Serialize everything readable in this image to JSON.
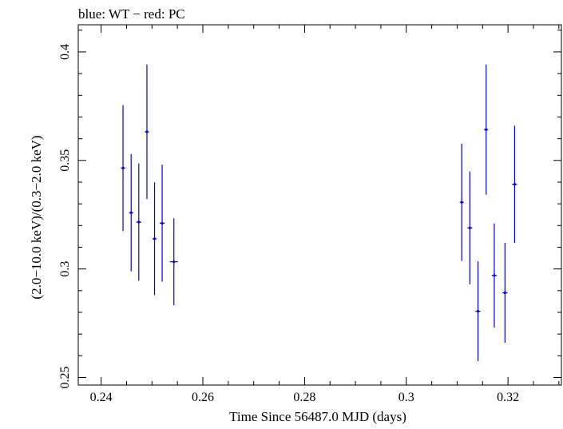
{
  "chart_data": {
    "type": "scatter",
    "title": "blue: WT − red: PC",
    "xlabel": "Time Since 56487.0 MJD (days)",
    "ylabel": "(2.0−10.0 keV)/(0.3−2.0 keV)",
    "xlim": [
      0.2355,
      0.3305
    ],
    "ylim": [
      0.2465,
      0.4125
    ],
    "x_ticks": [
      0.24,
      0.26,
      0.28,
      0.3,
      0.32
    ],
    "x_tick_labels": [
      "0.24",
      "0.26",
      "0.28",
      "0.3",
      "0.32"
    ],
    "y_ticks": [
      0.25,
      0.3,
      0.35,
      0.4
    ],
    "y_tick_labels": [
      "0.25",
      "0.3",
      "0.35",
      "0.4"
    ],
    "grid": false,
    "series": [
      {
        "name": "WT",
        "color": "#0000ee",
        "points": [
          {
            "x": 0.2443,
            "xerr": 0.0004,
            "y": 0.3465,
            "yerr": 0.029
          },
          {
            "x": 0.2459,
            "xerr": 0.0004,
            "y": 0.3259,
            "yerr": 0.027
          },
          {
            "x": 0.2474,
            "xerr": 0.0005,
            "y": 0.3216,
            "yerr": 0.027
          },
          {
            "x": 0.249,
            "xerr": 0.0004,
            "y": 0.3632,
            "yerr": 0.031
          },
          {
            "x": 0.2505,
            "xerr": 0.0004,
            "y": 0.3139,
            "yerr": 0.026
          },
          {
            "x": 0.252,
            "xerr": 0.0005,
            "y": 0.3211,
            "yerr": 0.027
          },
          {
            "x": 0.2543,
            "xerr": 0.0008,
            "y": 0.3033,
            "yerr": 0.02
          }
        ]
      },
      {
        "name": "",
        "color": "#0000ee",
        "points": [
          {
            "x": 0.3109,
            "xerr": 0.0004,
            "y": 0.3307,
            "yerr": 0.027
          },
          {
            "x": 0.3125,
            "xerr": 0.0005,
            "y": 0.3189,
            "yerr": 0.026
          },
          {
            "x": 0.3141,
            "xerr": 0.0005,
            "y": 0.2805,
            "yerr": 0.023
          },
          {
            "x": 0.3157,
            "xerr": 0.0004,
            "y": 0.3642,
            "yerr": 0.03
          },
          {
            "x": 0.3173,
            "xerr": 0.0005,
            "y": 0.297,
            "yerr": 0.024
          },
          {
            "x": 0.3194,
            "xerr": 0.0005,
            "y": 0.289,
            "yerr": 0.023
          },
          {
            "x": 0.3213,
            "xerr": 0.0005,
            "y": 0.339,
            "yerr": 0.027
          }
        ]
      }
    ]
  }
}
